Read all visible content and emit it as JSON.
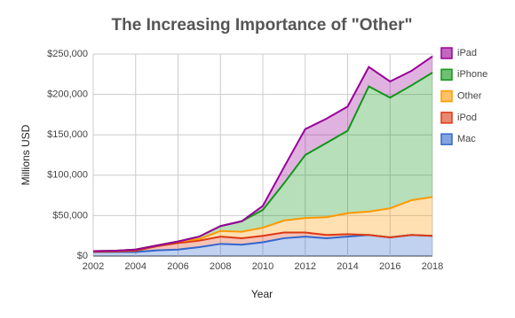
{
  "chart_data": {
    "type": "stacked_area",
    "title": "The Increasing Importance of \"Other\"",
    "x_label": "Year",
    "y_label": "Millions USD",
    "x": [
      2002,
      2003,
      2004,
      2005,
      2006,
      2007,
      2008,
      2009,
      2010,
      2011,
      2012,
      2013,
      2014,
      2015,
      2016,
      2017,
      2018
    ],
    "series": [
      {
        "name": "Mac",
        "color": "#3366cc",
        "values": [
          5000,
          5000,
          5000,
          7000,
          8000,
          11000,
          15000,
          14000,
          17000,
          22000,
          24000,
          22000,
          24000,
          26000,
          23000,
          26000,
          25000
        ]
      },
      {
        "name": "iPod",
        "color": "#dc3912",
        "values": [
          200,
          500,
          1500,
          5000,
          8000,
          8000,
          9000,
          8000,
          8000,
          7000,
          5000,
          4000,
          3000,
          0,
          0,
          0,
          0
        ]
      },
      {
        "name": "Other",
        "color": "#ff9900",
        "values": [
          800,
          1000,
          1500,
          1000,
          2000,
          2000,
          7000,
          8000,
          10000,
          15000,
          18000,
          22000,
          26000,
          29000,
          36000,
          43000,
          48000
        ]
      },
      {
        "name": "iPhone",
        "color": "#109618",
        "values": [
          0,
          0,
          0,
          0,
          0,
          3000,
          6000,
          13000,
          22000,
          46000,
          78000,
          92000,
          102000,
          155000,
          137000,
          142000,
          154000
        ]
      },
      {
        "name": "iPad",
        "color": "#990099",
        "values": [
          0,
          0,
          0,
          0,
          0,
          0,
          0,
          0,
          5000,
          20000,
          32000,
          30000,
          30000,
          24000,
          20000,
          18000,
          20000
        ]
      }
    ],
    "xlim": [
      2002,
      2018
    ],
    "xticks": [
      2002,
      2004,
      2006,
      2008,
      2010,
      2012,
      2014,
      2016,
      2018
    ],
    "ylim": [
      0,
      250000
    ],
    "yticks": [
      {
        "value": 0,
        "label": "$0"
      },
      {
        "value": 50000,
        "label": "$50,000"
      },
      {
        "value": 100000,
        "label": "$100,000"
      },
      {
        "value": 150000,
        "label": "$150,000"
      },
      {
        "value": 200000,
        "label": "$200,000"
      },
      {
        "value": 250000,
        "label": "$250,000"
      }
    ],
    "grid": true,
    "legend": "right"
  }
}
